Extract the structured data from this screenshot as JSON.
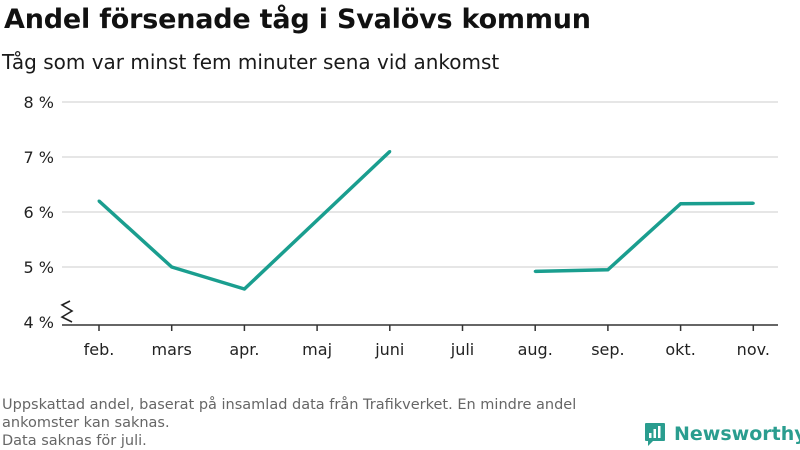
{
  "title": "Andel försenade tåg i Svalövs kommun",
  "subtitle": "Tåg som var minst fem minuter sena vid ankomst",
  "footnote_lines": [
    "Uppskattad andel, baserat på insamlad data från Trafikverket. En mindre andel ankomster kan saknas.",
    "Data saknas för juli."
  ],
  "brand": "Newsworthy",
  "colors": {
    "line": "#1a9e8f",
    "grid": "#dddddd",
    "axis": "#333333",
    "brand": "#2a9d8f"
  },
  "chart_data": {
    "type": "line",
    "title": "Andel försenade tåg i Svalövs kommun",
    "subtitle": "Tåg som var minst fem minuter sena vid ankomst",
    "categories": [
      "feb.",
      "mars",
      "apr.",
      "maj",
      "juni",
      "juli",
      "aug.",
      "sep.",
      "okt.",
      "nov."
    ],
    "series": [
      {
        "values": [
          6.2,
          5.0,
          4.6,
          5.85,
          7.1,
          null,
          4.92,
          4.95,
          6.15,
          6.16
        ]
      }
    ],
    "ylim": [
      4,
      8
    ],
    "yticks": [
      4,
      5,
      6,
      7,
      8
    ],
    "ytick_labels": [
      "4 %",
      "5 %",
      "6 %",
      "7 %",
      "8 %"
    ],
    "y_axis_broken": true,
    "grid": true,
    "xlabel": "",
    "ylabel": ""
  }
}
